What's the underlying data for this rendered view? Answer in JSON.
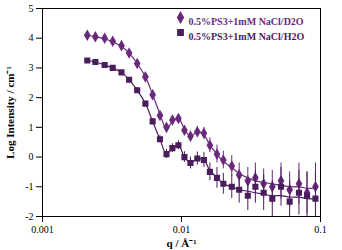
{
  "chart_data": {
    "type": "scatter",
    "x_label": "q / Å⁻¹",
    "y_label": "Log Intensity / cm⁻¹",
    "log": "x",
    "grid": false,
    "legend": "top-right",
    "xlim": [
      0.001,
      0.1
    ],
    "xticks": [
      0.001,
      0.01,
      0.1
    ],
    "ylim": [
      -2,
      5
    ],
    "yticks": [
      -2,
      -1,
      0,
      1,
      2,
      3,
      4,
      5
    ],
    "x": [
      0.0021,
      0.0024,
      0.0028,
      0.0032,
      0.0037,
      0.0042,
      0.0048,
      0.0055,
      0.0062,
      0.007,
      0.0078,
      0.0086,
      0.0095,
      0.0105,
      0.0116,
      0.013,
      0.0145,
      0.016,
      0.018,
      0.02,
      0.023,
      0.026,
      0.03,
      0.034,
      0.039,
      0.045,
      0.052,
      0.06,
      0.07,
      0.08,
      0.092
    ],
    "series": [
      {
        "name": "0.5%PS3+1mM NaCl/D2O",
        "color": "#6a2a7c",
        "marker": "diamond",
        "values": [
          4.1,
          4.05,
          4.0,
          3.9,
          3.75,
          3.5,
          3.15,
          2.7,
          2.1,
          1.4,
          1.0,
          1.25,
          1.3,
          0.9,
          0.7,
          0.85,
          0.8,
          0.4,
          0.1,
          -0.1,
          -0.3,
          -0.6,
          -0.8,
          -0.7,
          -0.9,
          -1.0,
          -0.8,
          -1.1,
          -0.9,
          -1.2,
          -1.0
        ],
        "errors": [
          0.05,
          0.05,
          0.05,
          0.05,
          0.05,
          0.06,
          0.06,
          0.07,
          0.08,
          0.1,
          0.12,
          0.12,
          0.12,
          0.15,
          0.18,
          0.18,
          0.2,
          0.25,
          0.3,
          0.3,
          0.35,
          0.4,
          0.45,
          0.5,
          0.5,
          0.55,
          0.6,
          0.6,
          0.7,
          0.7,
          0.8
        ],
        "fit": [
          4.1,
          4.05,
          3.98,
          3.88,
          3.72,
          3.5,
          3.15,
          2.7,
          2.1,
          1.45,
          0.95,
          1.2,
          1.3,
          0.95,
          0.7,
          0.85,
          0.75,
          0.4,
          0.1,
          -0.15,
          -0.35,
          -0.55,
          -0.7,
          -0.8,
          -0.85,
          -0.9,
          -0.95,
          -1.0,
          -1.0,
          -1.05,
          -1.05
        ]
      },
      {
        "name": "0.5%PS3+1mM NaCl/H2O",
        "color": "#4a1e5c",
        "marker": "square",
        "values": [
          3.25,
          3.2,
          3.1,
          3.0,
          2.85,
          2.6,
          2.25,
          1.8,
          1.2,
          0.6,
          0.1,
          0.3,
          0.4,
          0.0,
          -0.2,
          -0.05,
          -0.1,
          -0.5,
          -0.7,
          -0.9,
          -1.0,
          -1.1,
          -1.3,
          -1.0,
          -1.2,
          -1.4,
          -1.0,
          -1.5,
          -1.2,
          -1.3,
          -1.4
        ],
        "errors": [
          0.05,
          0.05,
          0.05,
          0.05,
          0.06,
          0.06,
          0.07,
          0.08,
          0.1,
          0.12,
          0.15,
          0.15,
          0.15,
          0.18,
          0.2,
          0.22,
          0.25,
          0.3,
          0.35,
          0.35,
          0.4,
          0.45,
          0.5,
          0.55,
          0.6,
          0.6,
          0.65,
          0.7,
          0.75,
          0.8,
          0.9
        ],
        "fit": [
          3.25,
          3.2,
          3.1,
          3.0,
          2.85,
          2.6,
          2.25,
          1.8,
          1.2,
          0.6,
          0.1,
          0.3,
          0.4,
          0.0,
          -0.2,
          -0.05,
          -0.1,
          -0.45,
          -0.7,
          -0.9,
          -1.0,
          -1.1,
          -1.15,
          -1.2,
          -1.25,
          -1.3,
          -1.3,
          -1.35,
          -1.35,
          -1.4,
          -1.4
        ]
      }
    ]
  }
}
